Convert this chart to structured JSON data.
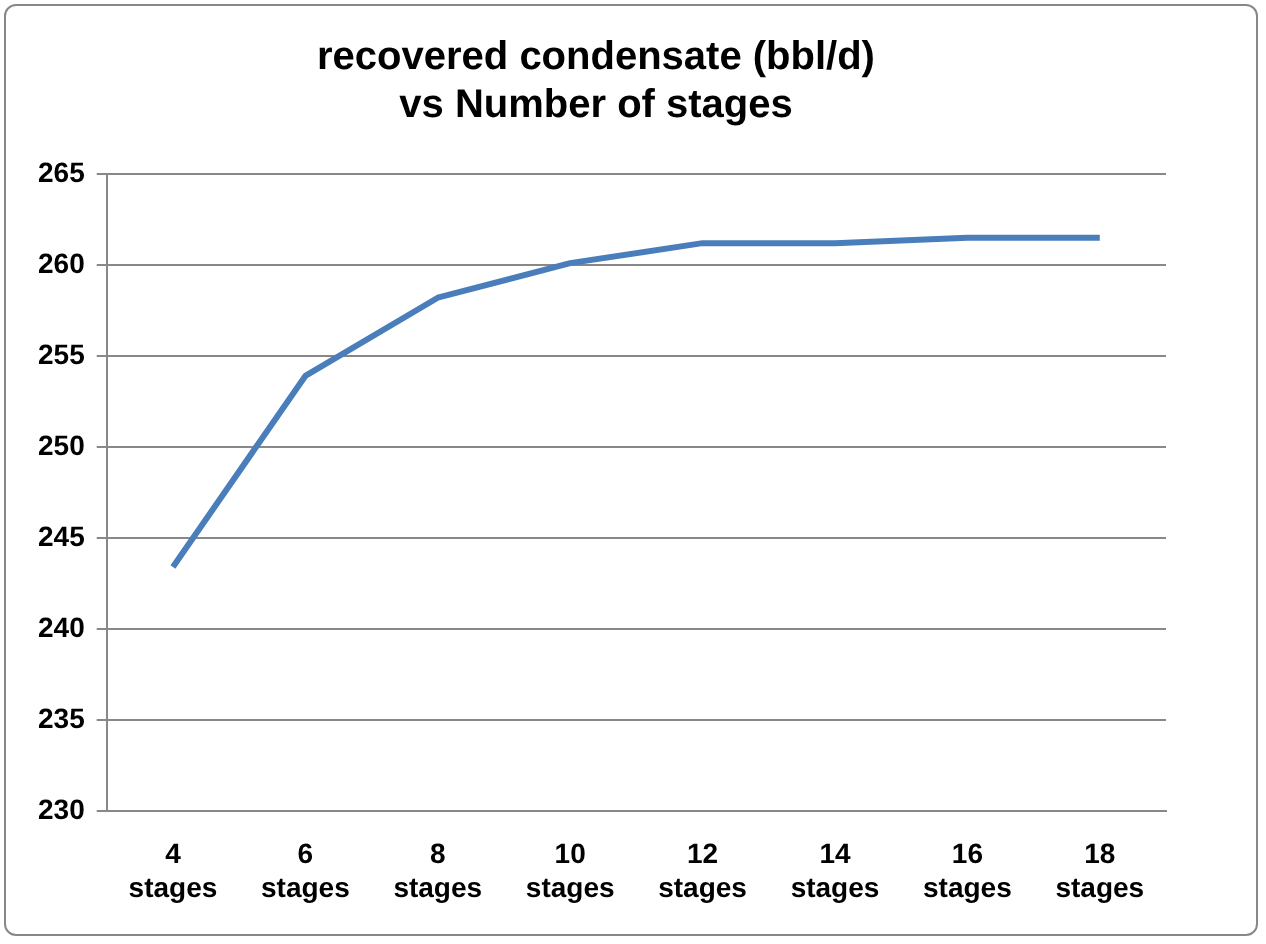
{
  "chart_data": {
    "type": "line",
    "title": "recovered condensate (bbl/d)\nvs Number of stages",
    "categories": [
      "4 stages",
      "6 stages",
      "8 stages",
      "10 stages",
      "12 stages",
      "14 stages",
      "16 stages",
      "18 stages"
    ],
    "series": [
      {
        "color": "#4a7ebb",
        "values": [
          243.4,
          253.9,
          258.2,
          260.1,
          261.2,
          261.2,
          261.5,
          261.5
        ]
      }
    ],
    "ylim": [
      230,
      265
    ],
    "yticks": [
      230,
      235,
      240,
      245,
      250,
      255,
      260,
      265
    ],
    "grid": "y",
    "legend": false,
    "marker": "none",
    "line_style": "solid"
  }
}
